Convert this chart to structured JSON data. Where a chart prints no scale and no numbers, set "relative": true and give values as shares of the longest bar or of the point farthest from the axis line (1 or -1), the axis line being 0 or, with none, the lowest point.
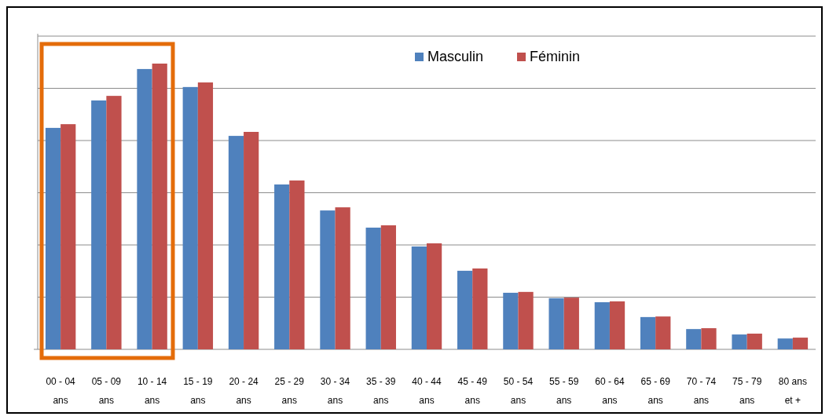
{
  "chart_data": {
    "type": "bar",
    "relative": true,
    "grid": true,
    "legend": "top",
    "categories": [
      "00 - 04 ans",
      "05 - 09 ans",
      "10 - 14 ans",
      "15 - 19 ans",
      "20 - 24 ans",
      "25 - 29 ans",
      "30 - 34 ans",
      "35 - 39 ans",
      "40 - 44 ans",
      "45 - 49 ans",
      "50 - 54 ans",
      "55 - 59 ans",
      "60 - 64 ans",
      "65 - 69 ans",
      "70 - 74 ans",
      "75 - 79 ans",
      "80 ans et +"
    ],
    "series": [
      {
        "name": "Masculin",
        "color": "#4f81bd",
        "values": [
          0.775,
          0.871,
          0.981,
          0.918,
          0.747,
          0.577,
          0.486,
          0.426,
          0.36,
          0.275,
          0.198,
          0.179,
          0.165,
          0.113,
          0.071,
          0.052,
          0.038
        ]
      },
      {
        "name": "Féminin",
        "color": "#c0504d",
        "values": [
          0.788,
          0.887,
          1,
          0.934,
          0.761,
          0.591,
          0.497,
          0.434,
          0.371,
          0.283,
          0.201,
          0.181,
          0.168,
          0.115,
          0.074,
          0.055,
          0.041
        ]
      }
    ]
  }
}
